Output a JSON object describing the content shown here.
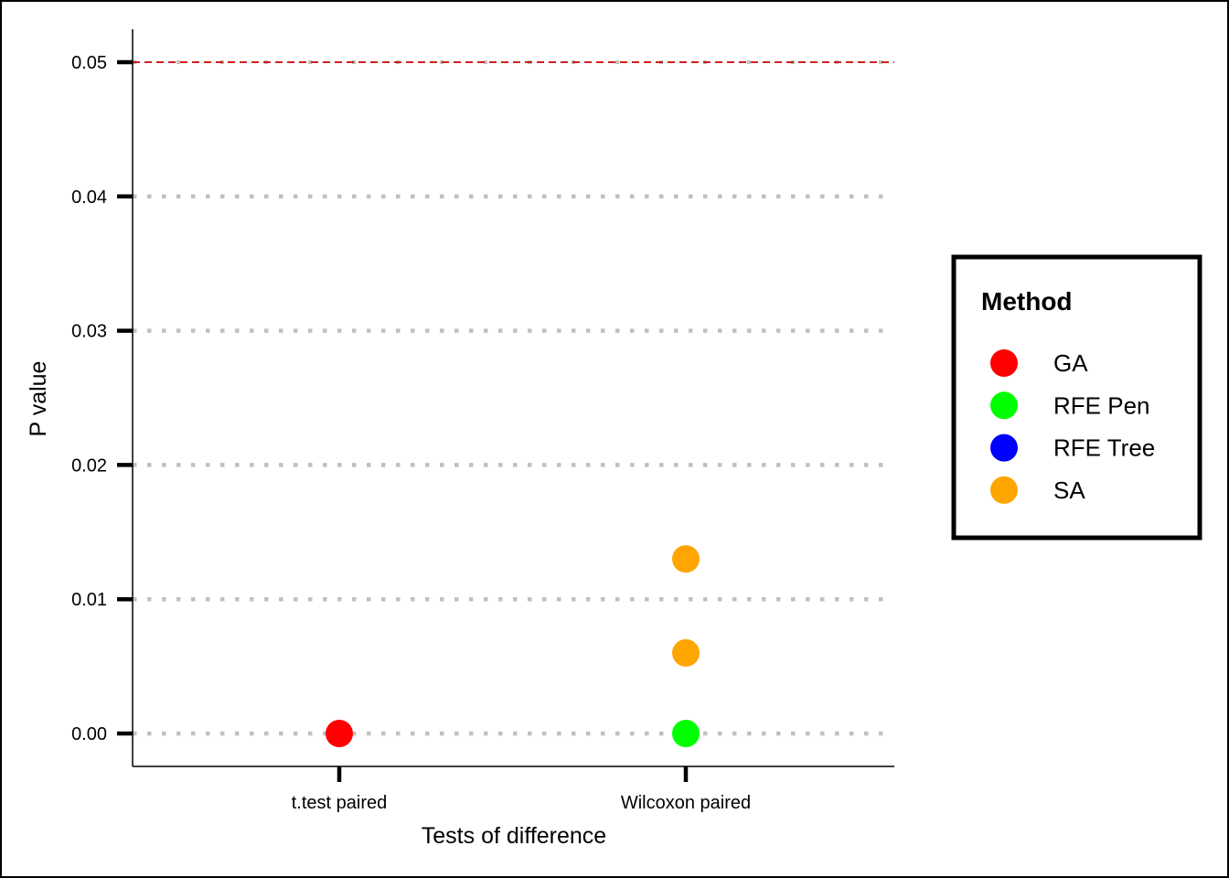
{
  "chart_data": {
    "type": "scatter",
    "xlabel": "Tests of difference",
    "ylabel": "P value",
    "categories": [
      "t.test paired",
      "Wilcoxon paired"
    ],
    "ylim": [
      -0.0025,
      0.0525
    ],
    "yticks": [
      "0.00",
      "0.01",
      "0.02",
      "0.03",
      "0.04",
      "0.05"
    ],
    "ytick_values": [
      0,
      0.01,
      0.02,
      0.03,
      0.04,
      0.05
    ],
    "grid": "horizontal dotted",
    "reference_line": {
      "value": 0.05,
      "color": "#cc0000",
      "style": "dashed"
    },
    "legend": {
      "title": "Method",
      "position": "right"
    },
    "series": [
      {
        "name": "GA",
        "color": "#ff0000",
        "points": [
          {
            "x": "t.test paired",
            "y": 0.0
          }
        ]
      },
      {
        "name": "RFE Pen",
        "color": "#00ff00",
        "points": [
          {
            "x": "Wilcoxon paired",
            "y": 0.0
          }
        ]
      },
      {
        "name": "RFE Tree",
        "color": "#0000ff",
        "points": []
      },
      {
        "name": "SA",
        "color": "#ffa500",
        "points": [
          {
            "x": "Wilcoxon paired",
            "y": 0.006
          },
          {
            "x": "Wilcoxon paired",
            "y": 0.013
          }
        ]
      }
    ]
  }
}
